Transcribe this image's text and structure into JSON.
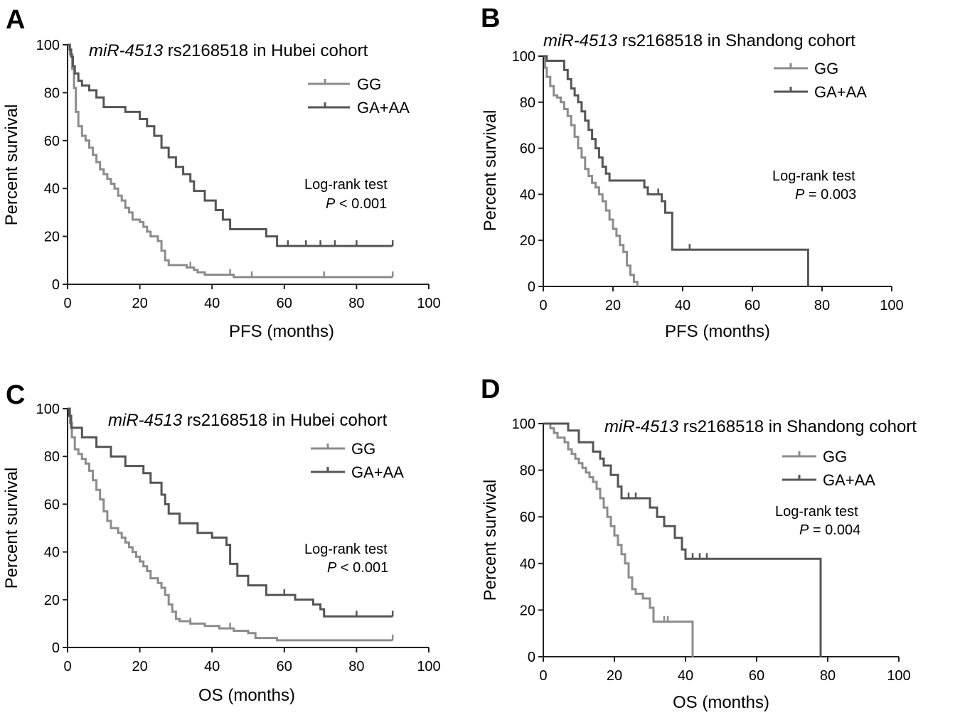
{
  "chart_data": [
    {
      "panel_label": "A",
      "type": "line",
      "step": true,
      "title_italic": "miR-4513",
      "title_rest": " rs2168518 in Hubei cohort",
      "xlabel": "PFS (months)",
      "ylabel": "Percent survival",
      "xlim": [
        0,
        100
      ],
      "ylim": [
        0,
        100
      ],
      "xticks": [
        "0",
        "20",
        "40",
        "60",
        "80",
        "100"
      ],
      "yticks": [
        "0",
        "20",
        "40",
        "60",
        "80",
        "100"
      ],
      "test_label": "Log-rank test",
      "p_symbol": "P",
      "p_text": " < 0.001",
      "legend_position": "top-right",
      "series": [
        {
          "name": "GG",
          "color": "#8c8c8c",
          "points": [
            [
              0,
              100
            ],
            [
              0.7,
              96
            ],
            [
              1.3,
              90
            ],
            [
              1.8,
              82
            ],
            [
              2.3,
              72
            ],
            [
              3,
              66
            ],
            [
              4,
              62
            ],
            [
              5,
              60
            ],
            [
              6,
              57
            ],
            [
              7,
              54
            ],
            [
              8,
              51
            ],
            [
              9,
              48
            ],
            [
              10,
              46
            ],
            [
              11,
              44
            ],
            [
              12,
              42
            ],
            [
              13,
              40
            ],
            [
              14,
              37
            ],
            [
              15,
              35
            ],
            [
              16,
              32
            ],
            [
              17,
              30
            ],
            [
              18,
              27
            ],
            [
              20,
              26
            ],
            [
              21,
              24
            ],
            [
              22,
              22
            ],
            [
              23,
              20
            ],
            [
              25,
              18
            ],
            [
              26,
              14
            ],
            [
              27,
              10
            ],
            [
              28,
              8
            ],
            [
              33,
              7
            ],
            [
              35,
              6
            ],
            [
              36,
              5
            ],
            [
              38,
              4
            ],
            [
              45,
              4
            ],
            [
              46,
              3
            ],
            [
              90,
              3
            ]
          ],
          "censor_x": [
            34,
            45,
            51,
            71,
            90
          ]
        },
        {
          "name": "GA+AA",
          "color": "#555555",
          "points": [
            [
              0,
              100
            ],
            [
              0.6,
              98
            ],
            [
              1,
              95
            ],
            [
              1.5,
              91
            ],
            [
              2,
              88
            ],
            [
              3,
              85
            ],
            [
              4,
              83
            ],
            [
              6,
              81
            ],
            [
              8,
              78
            ],
            [
              10,
              74
            ],
            [
              16,
              72
            ],
            [
              20,
              69
            ],
            [
              22,
              66
            ],
            [
              24,
              62
            ],
            [
              26,
              57
            ],
            [
              28,
              53
            ],
            [
              30,
              49
            ],
            [
              32,
              46
            ],
            [
              34,
              43
            ],
            [
              35,
              39
            ],
            [
              38,
              35
            ],
            [
              41,
              31
            ],
            [
              43,
              27
            ],
            [
              45,
              23
            ],
            [
              55,
              20
            ],
            [
              58,
              16
            ],
            [
              90,
              16
            ]
          ],
          "censor_x": [
            61,
            66,
            70,
            74,
            80,
            90
          ]
        }
      ]
    },
    {
      "panel_label": "B",
      "type": "line",
      "step": true,
      "title_italic": "miR-4513",
      "title_rest": " rs2168518 in Shandong cohort",
      "xlabel": "PFS (months)",
      "ylabel": "Percent survival",
      "xlim": [
        0,
        100
      ],
      "ylim": [
        0,
        100
      ],
      "xticks": [
        "0",
        "20",
        "40",
        "60",
        "80",
        "100"
      ],
      "yticks": [
        "0",
        "20",
        "40",
        "60",
        "80",
        "100"
      ],
      "test_label": "Log-rank test",
      "p_symbol": "P",
      "p_text": " = 0.003",
      "legend_position": "top-right",
      "series": [
        {
          "name": "GG",
          "color": "#8c8c8c",
          "points": [
            [
              0,
              100
            ],
            [
              0.5,
              95
            ],
            [
              1,
              91
            ],
            [
              2,
              87
            ],
            [
              3,
              83
            ],
            [
              4,
              82
            ],
            [
              5,
              80
            ],
            [
              6,
              77
            ],
            [
              7,
              74
            ],
            [
              8,
              70
            ],
            [
              9,
              65
            ],
            [
              10,
              60
            ],
            [
              11,
              56
            ],
            [
              12,
              51
            ],
            [
              13,
              48
            ],
            [
              14,
              45
            ],
            [
              15,
              43
            ],
            [
              16,
              40
            ],
            [
              17,
              37
            ],
            [
              18,
              33
            ],
            [
              19,
              29
            ],
            [
              20,
              25
            ],
            [
              21,
              22
            ],
            [
              22,
              18
            ],
            [
              23,
              15
            ],
            [
              24,
              9
            ],
            [
              25,
              5
            ],
            [
              26,
              2
            ],
            [
              27,
              0
            ]
          ],
          "censor_x": [
            5
          ]
        },
        {
          "name": "GA+AA",
          "color": "#555555",
          "points": [
            [
              0,
              100
            ],
            [
              1,
              98
            ],
            [
              6,
              94
            ],
            [
              7,
              90
            ],
            [
              8,
              86
            ],
            [
              9,
              83
            ],
            [
              10,
              80
            ],
            [
              11,
              76
            ],
            [
              12,
              72
            ],
            [
              13,
              68
            ],
            [
              14,
              64
            ],
            [
              15,
              60
            ],
            [
              16,
              56
            ],
            [
              17,
              52
            ],
            [
              18,
              49
            ],
            [
              19,
              46
            ],
            [
              29,
              43
            ],
            [
              30,
              40
            ],
            [
              34,
              37
            ],
            [
              35,
              32
            ],
            [
              37,
              16
            ],
            [
              76,
              16
            ],
            [
              76,
              0
            ]
          ],
          "censor_x": [
            30,
            33,
            42
          ]
        }
      ]
    },
    {
      "panel_label": "C",
      "type": "line",
      "step": true,
      "title_italic": "miR-4513",
      "title_rest": " rs2168518 in Hubei cohort",
      "xlabel": "OS (months)",
      "ylabel": "Percent survival",
      "xlim": [
        0,
        100
      ],
      "ylim": [
        0,
        100
      ],
      "xticks": [
        "0",
        "20",
        "40",
        "60",
        "80",
        "100"
      ],
      "yticks": [
        "0",
        "20",
        "40",
        "60",
        "80",
        "100"
      ],
      "test_label": "Log-rank test",
      "p_symbol": "P",
      "p_text": " < 0.001",
      "legend_position": "top-right",
      "series": [
        {
          "name": "GG",
          "color": "#8c8c8c",
          "points": [
            [
              0,
              100
            ],
            [
              0.7,
              94
            ],
            [
              1.2,
              88
            ],
            [
              2,
              83
            ],
            [
              3,
              81
            ],
            [
              4,
              79
            ],
            [
              5,
              77
            ],
            [
              6,
              74
            ],
            [
              7,
              70
            ],
            [
              8,
              66
            ],
            [
              9,
              62
            ],
            [
              10,
              57
            ],
            [
              11,
              53
            ],
            [
              12,
              50
            ],
            [
              14,
              48
            ],
            [
              15,
              46
            ],
            [
              16,
              44
            ],
            [
              17,
              42
            ],
            [
              18,
              40
            ],
            [
              19,
              38
            ],
            [
              20,
              36
            ],
            [
              21,
              34
            ],
            [
              22,
              32
            ],
            [
              23,
              29
            ],
            [
              25,
              27
            ],
            [
              26,
              25
            ],
            [
              27,
              22
            ],
            [
              28,
              18
            ],
            [
              29,
              15
            ],
            [
              30,
              12
            ],
            [
              31,
              11
            ],
            [
              34,
              10
            ],
            [
              38,
              9
            ],
            [
              42,
              8
            ],
            [
              46,
              7
            ],
            [
              50,
              6
            ],
            [
              52,
              4
            ],
            [
              58,
              3
            ],
            [
              90,
              3
            ]
          ],
          "censor_x": [
            1,
            34,
            45,
            90
          ]
        },
        {
          "name": "GA+AA",
          "color": "#555555",
          "points": [
            [
              0,
              100
            ],
            [
              0.5,
              97
            ],
            [
              1,
              92
            ],
            [
              4,
              88
            ],
            [
              8,
              84
            ],
            [
              12,
              80
            ],
            [
              16,
              76
            ],
            [
              21,
              73
            ],
            [
              23,
              69
            ],
            [
              26,
              64
            ],
            [
              27,
              60
            ],
            [
              28,
              56
            ],
            [
              31,
              52
            ],
            [
              36,
              48
            ],
            [
              40,
              46
            ],
            [
              44,
              43
            ],
            [
              45,
              35
            ],
            [
              47,
              30
            ],
            [
              50,
              26
            ],
            [
              55,
              22
            ],
            [
              63,
              20
            ],
            [
              68,
              18
            ],
            [
              70,
              16
            ],
            [
              71,
              13
            ],
            [
              90,
              13
            ]
          ],
          "censor_x": [
            60,
            71,
            80,
            90
          ]
        }
      ]
    },
    {
      "panel_label": "D",
      "type": "line",
      "step": true,
      "title_italic": "miR-4513",
      "title_rest": " rs2168518 in Shandong cohort",
      "xlabel": "OS (months)",
      "ylabel": "Percent survival",
      "xlim": [
        0,
        100
      ],
      "ylim": [
        0,
        100
      ],
      "xticks": [
        "0",
        "20",
        "40",
        "60",
        "80",
        "100"
      ],
      "yticks": [
        "0",
        "20",
        "40",
        "60",
        "80",
        "100"
      ],
      "test_label": "Log-rank test",
      "p_symbol": "P",
      "p_text": " = 0.004",
      "legend_position": "top-right",
      "series": [
        {
          "name": "GG",
          "color": "#8c8c8c",
          "points": [
            [
              0,
              100
            ],
            [
              2,
              98
            ],
            [
              3,
              96
            ],
            [
              4,
              94
            ],
            [
              6,
              92
            ],
            [
              7,
              89
            ],
            [
              8,
              87
            ],
            [
              9,
              85
            ],
            [
              10,
              83
            ],
            [
              11,
              81
            ],
            [
              12,
              79
            ],
            [
              13,
              77
            ],
            [
              14,
              75
            ],
            [
              15,
              72
            ],
            [
              16,
              68
            ],
            [
              17,
              64
            ],
            [
              18,
              60
            ],
            [
              19,
              56
            ],
            [
              20,
              52
            ],
            [
              21,
              48
            ],
            [
              22,
              44
            ],
            [
              23,
              40
            ],
            [
              24,
              34
            ],
            [
              25,
              29
            ],
            [
              26,
              27
            ],
            [
              28,
              25
            ],
            [
              30,
              21
            ],
            [
              31,
              15
            ],
            [
              42,
              15
            ],
            [
              42,
              0
            ]
          ],
          "censor_x": [
            34,
            35
          ]
        },
        {
          "name": "GA+AA",
          "color": "#555555",
          "points": [
            [
              0,
              100
            ],
            [
              7,
              97
            ],
            [
              10,
              92
            ],
            [
              14,
              88
            ],
            [
              16,
              85
            ],
            [
              17,
              82
            ],
            [
              19,
              78
            ],
            [
              21,
              73
            ],
            [
              22,
              68
            ],
            [
              30,
              64
            ],
            [
              32,
              60
            ],
            [
              34,
              56
            ],
            [
              37,
              51
            ],
            [
              39,
              46
            ],
            [
              40,
              42
            ],
            [
              78,
              42
            ],
            [
              78,
              0
            ]
          ],
          "censor_x": [
            7,
            24,
            26,
            42,
            44,
            46
          ]
        }
      ]
    }
  ]
}
